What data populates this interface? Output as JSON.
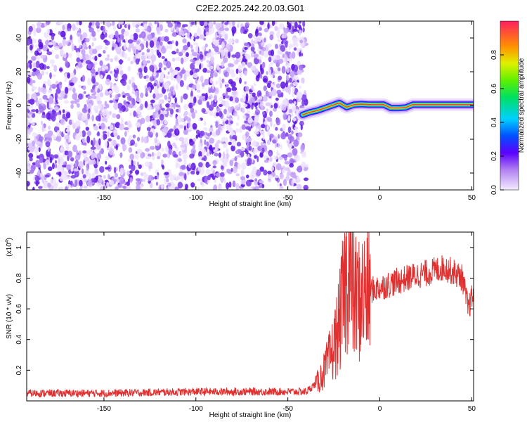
{
  "title": "C2E2.2025.242.20.03.G01",
  "chart_data": [
    {
      "type": "heatmap",
      "xlabel": "Height of straight line (km)",
      "ylabel": "Frequency (Hz)",
      "xlim": [
        -192,
        51
      ],
      "ylim": [
        -50,
        50
      ],
      "xticks": [
        -150,
        -100,
        -50,
        0,
        50
      ],
      "yticks": [
        -40,
        -20,
        0,
        20,
        40
      ],
      "noise_region_x": [
        -192,
        -40
      ],
      "noise_region_y": [
        -50,
        50
      ],
      "ridge": {
        "x": [
          -42,
          -38,
          -34,
          -30,
          -26,
          -22,
          -18,
          -14,
          -10,
          -6,
          -2,
          2,
          6,
          10,
          14,
          18,
          22,
          30,
          40,
          51
        ],
        "y": [
          -5.5,
          -4,
          -3,
          -1.5,
          0,
          1.5,
          -1,
          0.5,
          0.8,
          0.5,
          0.5,
          0.6,
          -1.5,
          -1.5,
          -1.2,
          0.5,
          0.5,
          0.5,
          0.5,
          0.5
        ]
      },
      "colorbar": {
        "label": "Normalized spectral amplitude",
        "ticks": [
          0.0,
          0.2,
          0.4,
          0.6,
          0.8
        ],
        "range": [
          0,
          1
        ]
      }
    },
    {
      "type": "line",
      "xlabel": "Height of straight line (km)",
      "ylabel": "SNR (10 * v/v)",
      "yscale_label": "(x10",
      "yscale_exp": "4",
      "yscale_close": ")",
      "xlim": [
        -192,
        51
      ],
      "ylim": [
        0,
        1.1
      ],
      "xticks": [
        -150,
        -100,
        -50,
        0,
        50
      ],
      "yticks": [
        0.2,
        0.4,
        0.6,
        0.8,
        1.0
      ],
      "color": "#e03030",
      "series": [
        {
          "x": [
            -192,
            -150,
            -100,
            -60,
            -40,
            -35,
            -30,
            -25,
            -22,
            -19,
            -17,
            -15,
            -12,
            -8,
            -5,
            0,
            5,
            10,
            15,
            20,
            25,
            30,
            35,
            40,
            45,
            48,
            51
          ],
          "values": [
            0.04,
            0.04,
            0.05,
            0.05,
            0.05,
            0.1,
            0.2,
            0.35,
            0.5,
            0.75,
            0.9,
            0.7,
            0.65,
            0.7,
            0.72,
            0.74,
            0.76,
            0.78,
            0.8,
            0.82,
            0.83,
            0.85,
            0.87,
            0.84,
            0.8,
            0.6,
            0.7
          ]
        }
      ]
    }
  ]
}
